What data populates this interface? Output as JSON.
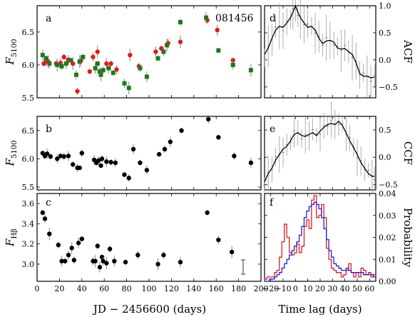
{
  "figure": {
    "object_label": "081456",
    "left_xlabel": "JD  −  2456600 (days)",
    "right_xlabel": "Time lag (days)"
  },
  "chart_data": [
    {
      "panel": "a",
      "type": "scatter",
      "ylabel_main": "F",
      "ylabel_sub": "5100",
      "xlim": [
        0,
        200
      ],
      "ylim": [
        5.5,
        6.9
      ],
      "xticks": [
        0,
        20,
        40,
        60,
        80,
        100,
        120,
        140,
        160,
        180,
        200
      ],
      "yticks": [
        5.5,
        6.0,
        6.5
      ],
      "ytick_labels": [
        "5.5",
        "6.0",
        "6.5"
      ],
      "series": [
        {
          "color": "#e41a1c",
          "marker": "circle",
          "x": [
            6,
            8,
            10,
            17,
            21,
            24,
            28,
            32,
            36,
            39,
            47,
            50,
            54,
            57,
            62,
            66,
            71,
            83,
            91,
            106,
            111,
            117,
            128,
            152,
            161,
            175
          ],
          "y": [
            6.02,
            6.05,
            6.05,
            6.02,
            6.03,
            6.12,
            6.08,
            6.02,
            5.6,
            6.06,
            5.9,
            6.12,
            6.2,
            5.88,
            6.02,
            6.02,
            5.93,
            6.15,
            5.98,
            6.2,
            6.25,
            6.33,
            6.35,
            6.68,
            6.53,
            6.07
          ]
        },
        {
          "color": "#1b7a1b",
          "marker": "square",
          "x": [
            5,
            8,
            11,
            18,
            22,
            26,
            30,
            35,
            38,
            41,
            52,
            54,
            56,
            57,
            59,
            64,
            68,
            78,
            82,
            92,
            98,
            108,
            113,
            116,
            128,
            151,
            162,
            175,
            191
          ],
          "y": [
            6.15,
            6.1,
            6.02,
            6.0,
            5.98,
            6.02,
            6.07,
            5.85,
            6.05,
            6.12,
            5.95,
            6.02,
            5.9,
            5.85,
            5.92,
            5.95,
            5.88,
            5.72,
            5.65,
            5.95,
            5.82,
            6.1,
            6.2,
            6.3,
            6.65,
            6.72,
            6.22,
            6.0,
            5.92
          ]
        }
      ]
    },
    {
      "panel": "b",
      "type": "scatter",
      "ylabel_main": "F",
      "ylabel_sub": "5100",
      "xlim": [
        0,
        200
      ],
      "ylim": [
        5.45,
        6.75
      ],
      "xticks": [
        0,
        20,
        40,
        60,
        80,
        100,
        120,
        140,
        160,
        180,
        200
      ],
      "yticks": [
        5.5,
        6.0,
        6.5
      ],
      "ytick_labels": [
        "5.5",
        "6.0",
        "6.5"
      ],
      "series": [
        {
          "color": "#000000",
          "marker": "circle",
          "x": [
            5,
            7,
            9,
            12,
            18,
            21,
            24,
            28,
            32,
            36,
            38,
            40,
            51,
            53,
            55,
            57,
            58,
            62,
            66,
            70,
            78,
            82,
            86,
            92,
            98,
            109,
            114,
            119,
            129,
            153,
            162,
            176,
            191
          ],
          "y": [
            6.1,
            6.05,
            6.09,
            6.04,
            6.0,
            6.05,
            6.04,
            6.05,
            5.9,
            5.84,
            5.84,
            6.1,
            5.98,
            5.93,
            5.97,
            5.88,
            6.0,
            5.95,
            5.94,
            5.93,
            5.72,
            5.66,
            6.17,
            5.93,
            5.8,
            6.08,
            6.17,
            6.3,
            6.5,
            6.7,
            6.38,
            6.05,
            5.93
          ]
        }
      ]
    },
    {
      "panel": "c",
      "type": "scatter",
      "ylabel_main": "F",
      "ylabel_sub": "Hβ",
      "xlim": [
        0,
        200
      ],
      "ylim": [
        2.83,
        3.7
      ],
      "xticks": [
        0,
        20,
        40,
        60,
        80,
        100,
        120,
        140,
        160,
        180,
        200
      ],
      "xtick_labels": [
        "0",
        "20",
        "40",
        "60",
        "80",
        "100",
        "120",
        "140",
        "160",
        "180",
        "200"
      ],
      "yticks": [
        3.0,
        3.2,
        3.4,
        3.6
      ],
      "ytick_labels": [
        "3.0",
        "3.2",
        "3.4",
        "3.6"
      ],
      "series": [
        {
          "color": "#000000",
          "marker": "circle",
          "x": [
            5,
            7,
            11,
            19,
            22,
            25,
            28,
            31,
            33,
            37,
            40,
            50,
            52,
            54,
            56,
            58,
            59,
            62,
            65,
            69,
            79,
            90,
            108,
            113,
            128,
            152,
            162,
            174
          ],
          "y": [
            3.51,
            3.45,
            3.3,
            3.19,
            3.03,
            3.03,
            3.09,
            3.16,
            3.04,
            3.21,
            3.25,
            3.03,
            3.03,
            3.18,
            2.97,
            3.07,
            3.03,
            3.01,
            3.15,
            3.03,
            3.02,
            3.09,
            3.0,
            3.09,
            3.02,
            3.51,
            3.24,
            3.12
          ]
        }
      ]
    },
    {
      "panel": "d",
      "type": "line",
      "ylabel": "ACF",
      "xlim": [
        -25,
        65
      ],
      "ylim": [
        -0.7,
        1.0
      ],
      "yticks": [
        -0.5,
        0.0,
        0.5,
        1.0
      ],
      "ytick_labels": [
        "−0.5",
        "0.0",
        "0.5",
        "1.0"
      ],
      "x": [
        -25,
        -22,
        -19,
        -16,
        -13,
        -10,
        -7,
        -4,
        -2,
        0,
        2,
        4,
        7,
        10,
        13,
        16,
        19,
        22,
        25,
        28,
        31,
        34,
        37,
        40,
        43,
        46,
        49,
        52,
        55,
        58,
        61,
        64
      ],
      "y": [
        0.1,
        0.22,
        0.4,
        0.55,
        0.62,
        0.6,
        0.68,
        0.78,
        0.88,
        1.0,
        0.88,
        0.78,
        0.68,
        0.6,
        0.62,
        0.55,
        0.4,
        0.3,
        0.35,
        0.36,
        0.33,
        0.22,
        0.2,
        0.21,
        0.15,
        0.1,
        -0.05,
        -0.25,
        -0.3,
        -0.3,
        -0.33,
        -0.32
      ]
    },
    {
      "panel": "e",
      "type": "line",
      "ylabel": "CCF",
      "xlim": [
        -25,
        65
      ],
      "ylim": [
        -0.6,
        0.75
      ],
      "yticks": [
        -0.5,
        0.0,
        0.5
      ],
      "ytick_labels": [
        "−0.5",
        "0.0",
        "0.5"
      ],
      "x": [
        -25,
        -22,
        -19,
        -16,
        -13,
        -10,
        -7,
        -4,
        -1,
        2,
        5,
        8,
        11,
        14,
        17,
        20,
        23,
        26,
        29,
        32,
        35,
        38,
        41,
        44,
        47,
        50,
        53,
        56,
        59,
        62,
        64
      ],
      "y": [
        -0.45,
        -0.3,
        -0.2,
        -0.05,
        0.05,
        0.15,
        0.2,
        0.3,
        0.42,
        0.45,
        0.4,
        0.38,
        0.42,
        0.45,
        0.4,
        0.48,
        0.55,
        0.6,
        0.62,
        0.6,
        0.66,
        0.58,
        0.45,
        0.3,
        0.18,
        0.05,
        -0.1,
        -0.2,
        -0.3,
        -0.35,
        -0.35
      ]
    },
    {
      "panel": "f",
      "type": "histogram",
      "ylabel": "Probability",
      "xlim": [
        -25,
        65
      ],
      "ylim": [
        0,
        0.04
      ],
      "xticks": [
        -20,
        -10,
        0,
        10,
        20,
        30,
        40,
        50,
        60
      ],
      "xtick_labels": [
        "−20",
        "−10",
        "0",
        "10",
        "20",
        "30",
        "40",
        "50",
        "60"
      ],
      "yticks": [
        0,
        0.01,
        0.02,
        0.03,
        0.04
      ],
      "ytick_labels": [
        "0.00",
        "0.01",
        "0.02",
        "0.03",
        "0.04"
      ],
      "bin_start": -25,
      "bin_width": 2,
      "series": [
        {
          "color": "#e41a1c",
          "values": [
            0.001,
            0.002,
            0.002,
            0.002,
            0.004,
            0.005,
            0.011,
            0.018,
            0.026,
            0.02,
            0.013,
            0.012,
            0.013,
            0.017,
            0.013,
            0.016,
            0.025,
            0.028,
            0.024,
            0.037,
            0.039,
            0.029,
            0.03,
            0.035,
            0.029,
            0.015,
            0.01,
            0.006,
            0.005,
            0.004,
            0.004,
            0.002,
            0.003,
            0.005,
            0.008,
            0.004,
            0.002,
            0.004,
            0.002,
            0.006,
            0.005,
            0.003,
            0.004,
            0.002,
            0.003
          ]
        },
        {
          "color": "#1f1fdc",
          "values": [
            0.0,
            0.0,
            0.001,
            0.001,
            0.002,
            0.003,
            0.004,
            0.006,
            0.008,
            0.01,
            0.012,
            0.014,
            0.016,
            0.018,
            0.021,
            0.025,
            0.029,
            0.032,
            0.034,
            0.035,
            0.036,
            0.035,
            0.033,
            0.029,
            0.024,
            0.019,
            0.014,
            0.011,
            0.008,
            0.007,
            0.006,
            0.005,
            0.005,
            0.006,
            0.005,
            0.004,
            0.004,
            0.004,
            0.004,
            0.004,
            0.003,
            0.003,
            0.003,
            0.003,
            0.002
          ]
        }
      ]
    }
  ]
}
